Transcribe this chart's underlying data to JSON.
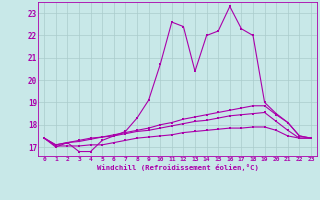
{
  "xlabel": "Windchill (Refroidissement éolien,°C)",
  "x": [
    0,
    1,
    2,
    3,
    4,
    5,
    6,
    7,
    8,
    9,
    10,
    11,
    12,
    13,
    14,
    15,
    16,
    17,
    18,
    19,
    20,
    21,
    22,
    23
  ],
  "line1": [
    17.4,
    17.0,
    17.2,
    16.8,
    16.8,
    17.3,
    17.5,
    17.7,
    18.3,
    19.1,
    20.7,
    22.6,
    22.4,
    20.4,
    22.0,
    22.2,
    23.3,
    22.3,
    22.0,
    19.0,
    18.5,
    18.1,
    17.5,
    17.4
  ],
  "line2": [
    17.4,
    17.1,
    17.2,
    17.25,
    17.35,
    17.45,
    17.55,
    17.65,
    17.75,
    17.85,
    18.0,
    18.1,
    18.25,
    18.35,
    18.45,
    18.55,
    18.65,
    18.75,
    18.85,
    18.85,
    18.45,
    18.1,
    17.5,
    17.4
  ],
  "line3": [
    17.4,
    17.1,
    17.2,
    17.3,
    17.4,
    17.45,
    17.5,
    17.6,
    17.7,
    17.75,
    17.85,
    17.95,
    18.05,
    18.15,
    18.2,
    18.3,
    18.4,
    18.45,
    18.5,
    18.55,
    18.15,
    17.75,
    17.4,
    17.4
  ],
  "line4": [
    17.4,
    17.05,
    17.05,
    17.05,
    17.1,
    17.1,
    17.2,
    17.3,
    17.4,
    17.45,
    17.5,
    17.55,
    17.65,
    17.7,
    17.75,
    17.8,
    17.85,
    17.85,
    17.9,
    17.9,
    17.75,
    17.5,
    17.4,
    17.4
  ],
  "line_color": "#AA00AA",
  "bg_color": "#C8E8E8",
  "grid_color": "#AACCCC",
  "ylim": [
    16.6,
    23.5
  ],
  "xlim": [
    -0.5,
    23.5
  ],
  "yticks": [
    17,
    18,
    19,
    20,
    21,
    22,
    23
  ],
  "xticks": [
    0,
    1,
    2,
    3,
    4,
    5,
    6,
    7,
    8,
    9,
    10,
    11,
    12,
    13,
    14,
    15,
    16,
    17,
    18,
    19,
    20,
    21,
    22,
    23
  ]
}
